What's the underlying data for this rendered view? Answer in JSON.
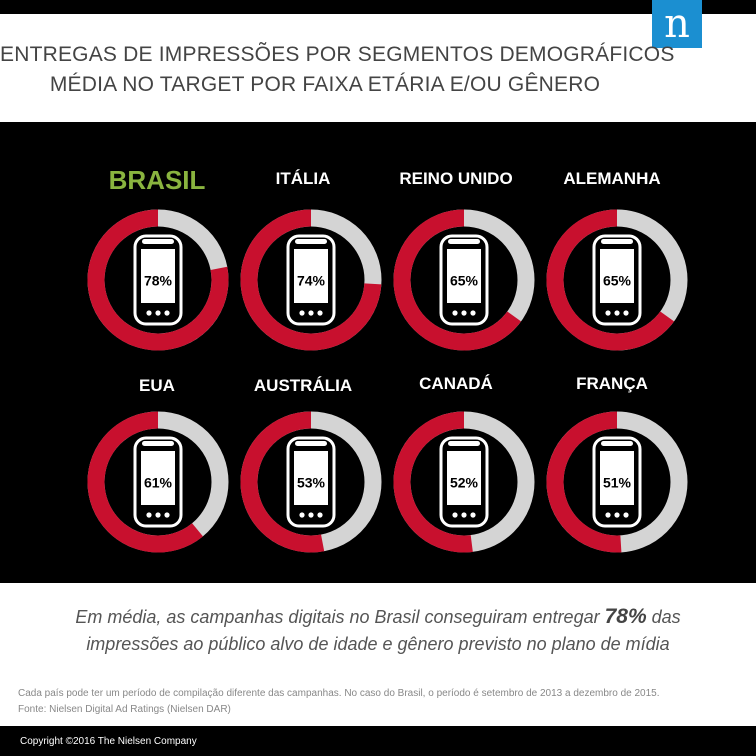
{
  "header": {
    "logo_letter": "n",
    "title_line1": "ENTREGAS DE IMPRESSÕES POR SEGMENTOS DEMOGRÁFICOS",
    "title_line2": "MÉDIA NO TARGET POR FAIXA ETÁRIA E/OU GÊNERO"
  },
  "colors": {
    "on_target": "#c8102e",
    "off_target": "#d4d4d4",
    "highlight": "#8ab43f",
    "panel": "#000000"
  },
  "chart_data": {
    "type": "donut",
    "unit": "%",
    "categories": [
      "BRASIL",
      "ITÁLIA",
      "REINO UNIDO",
      "ALEMANHA",
      "EUA",
      "AUSTRÁLIA",
      "CANADÁ",
      "FRANÇA"
    ],
    "values": [
      78,
      74,
      65,
      65,
      61,
      53,
      52,
      51
    ],
    "labels": [
      "78%",
      "74%",
      "65%",
      "65%",
      "61%",
      "53%",
      "52%",
      "51%"
    ],
    "highlight": "BRASIL"
  },
  "summary": {
    "before": "Em média, as campanhas digitais no Brasil conseguiram entregar ",
    "value": "78%",
    "after": " das",
    "line2": "impressões ao público alvo de idade e gênero previsto no plano de mídia"
  },
  "note": {
    "line1": "Cada país pode ter um período de compilação diferente das campanhas. No caso do Brasil, o período é setembro de 2013 a dezembro de 2015.",
    "line2": " Fonte: Nielsen Digital Ad Ratings (Nielsen DAR)"
  },
  "footer": {
    "copyright": "Copyright ©2016 The Nielsen Company"
  }
}
